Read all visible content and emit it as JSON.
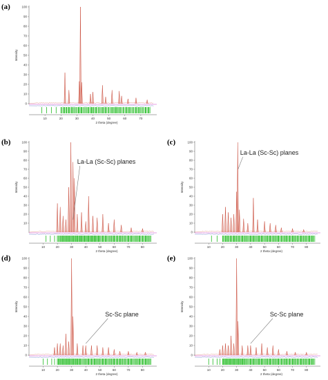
{
  "chart_data": [
    {
      "panel_label": "(a)",
      "type": "line",
      "xlabel": "2 theta (degree)",
      "ylabel": "Intensity",
      "xlim": [
        0,
        80
      ],
      "ylim": [
        0,
        100
      ],
      "xticks": [
        10,
        20,
        30,
        40,
        50,
        60,
        70
      ],
      "yticks": [
        0,
        10,
        20,
        30,
        40,
        50,
        60,
        70,
        80,
        90,
        100
      ],
      "peaks": [
        {
          "x": 22.5,
          "y": 32
        },
        {
          "x": 25.0,
          "y": 14
        },
        {
          "x": 31.5,
          "y": 23
        },
        {
          "x": 32.2,
          "y": 100
        },
        {
          "x": 33.0,
          "y": 22
        },
        {
          "x": 38.5,
          "y": 10
        },
        {
          "x": 40.0,
          "y": 12
        },
        {
          "x": 46.0,
          "y": 19
        },
        {
          "x": 48.0,
          "y": 7
        },
        {
          "x": 52.0,
          "y": 14
        },
        {
          "x": 56.5,
          "y": 13
        },
        {
          "x": 58.0,
          "y": 8
        },
        {
          "x": 62.0,
          "y": 5
        },
        {
          "x": 67.0,
          "y": 6
        },
        {
          "x": 74.0,
          "y": 4
        }
      ],
      "reflection_marks": [
        8,
        11,
        14,
        17,
        20,
        22,
        23.5,
        25,
        27,
        29,
        31,
        32,
        33,
        35,
        37,
        39,
        40,
        42,
        44,
        46,
        48,
        50,
        52,
        54,
        55,
        57,
        59,
        61,
        63,
        65,
        67,
        69,
        71,
        73,
        75
      ],
      "annotation": ""
    },
    {
      "panel_label": "(b)",
      "type": "line",
      "xlabel": "2 theta (degree)",
      "ylabel": "Intensity",
      "xlim": [
        0,
        90
      ],
      "ylim": [
        0,
        100
      ],
      "xticks": [
        10,
        20,
        30,
        40,
        50,
        60,
        70,
        80
      ],
      "yticks": [
        10,
        20,
        30,
        40,
        50,
        60,
        70,
        80,
        90,
        100
      ],
      "peaks": [
        {
          "x": 20.0,
          "y": 32
        },
        {
          "x": 22.0,
          "y": 28
        },
        {
          "x": 24.0,
          "y": 18
        },
        {
          "x": 26.0,
          "y": 14
        },
        {
          "x": 28.0,
          "y": 50
        },
        {
          "x": 29.5,
          "y": 100
        },
        {
          "x": 31.0,
          "y": 78
        },
        {
          "x": 32.0,
          "y": 60
        },
        {
          "x": 34.0,
          "y": 20
        },
        {
          "x": 37.0,
          "y": 22
        },
        {
          "x": 40.0,
          "y": 12
        },
        {
          "x": 42.0,
          "y": 40
        },
        {
          "x": 45.0,
          "y": 18
        },
        {
          "x": 48.0,
          "y": 16
        },
        {
          "x": 52.0,
          "y": 20
        },
        {
          "x": 56.0,
          "y": 10
        },
        {
          "x": 60.0,
          "y": 14
        },
        {
          "x": 65.0,
          "y": 8
        },
        {
          "x": 72.0,
          "y": 5
        },
        {
          "x": 80.0,
          "y": 4
        }
      ],
      "reflection_marks": [
        12,
        15,
        18,
        20,
        22,
        23,
        24,
        25,
        26,
        27,
        28,
        29,
        30,
        31,
        32,
        33,
        34,
        35,
        36,
        37,
        38,
        39,
        40,
        41,
        42,
        43,
        44,
        45,
        46,
        47,
        48,
        49,
        50,
        52,
        54,
        56,
        58,
        60,
        62,
        64,
        66,
        68,
        70,
        72,
        74,
        76,
        78,
        80,
        82,
        84
      ],
      "annotation": "La-La (Sc-Sc) planes",
      "annotation_target": {
        "x": 31.0,
        "y": 14
      }
    },
    {
      "panel_label": "(c)",
      "type": "line",
      "xlabel": "2 theta (degree)",
      "ylabel": "Intensity",
      "xlim": [
        0,
        90
      ],
      "ylim": [
        0,
        100
      ],
      "xticks": [
        10,
        20,
        30,
        40,
        50,
        60,
        70,
        80
      ],
      "yticks": [
        0,
        10,
        20,
        30,
        40,
        50,
        60,
        70,
        80,
        90,
        100
      ],
      "peaks": [
        {
          "x": 20.0,
          "y": 20
        },
        {
          "x": 22.0,
          "y": 28
        },
        {
          "x": 24.0,
          "y": 22
        },
        {
          "x": 26.0,
          "y": 16
        },
        {
          "x": 28.0,
          "y": 20
        },
        {
          "x": 30.0,
          "y": 45
        },
        {
          "x": 30.8,
          "y": 100
        },
        {
          "x": 32.0,
          "y": 25
        },
        {
          "x": 35.0,
          "y": 15
        },
        {
          "x": 38.0,
          "y": 10
        },
        {
          "x": 42.0,
          "y": 38
        },
        {
          "x": 45.0,
          "y": 14
        },
        {
          "x": 50.0,
          "y": 12
        },
        {
          "x": 54.0,
          "y": 10
        },
        {
          "x": 58.0,
          "y": 8
        },
        {
          "x": 62.0,
          "y": 5
        },
        {
          "x": 70.0,
          "y": 4
        },
        {
          "x": 78.0,
          "y": 3
        }
      ],
      "reflection_marks": [
        12,
        16,
        20,
        22,
        24,
        26,
        28,
        30,
        32,
        34,
        36,
        38,
        40,
        42,
        44,
        46,
        48,
        50,
        52,
        54,
        56,
        58,
        60,
        62,
        64,
        66,
        68,
        70,
        72,
        74,
        76,
        78,
        80,
        82,
        84
      ],
      "annotation": "La-La (Sc-Sc) planes",
      "annotation_target": {
        "x": 31.0,
        "y": 70
      }
    },
    {
      "panel_label": "(d)",
      "type": "line",
      "xlabel": "2 theta (degree)",
      "ylabel": "Intensity",
      "xlim": [
        0,
        90
      ],
      "ylim": [
        0,
        100
      ],
      "xticks": [
        10,
        20,
        30,
        40,
        50,
        60,
        70,
        80
      ],
      "yticks": [
        0,
        10,
        20,
        30,
        40,
        50,
        60,
        70,
        80,
        90,
        100
      ],
      "peaks": [
        {
          "x": 18.0,
          "y": 8
        },
        {
          "x": 20.0,
          "y": 12
        },
        {
          "x": 22.0,
          "y": 12
        },
        {
          "x": 24.0,
          "y": 10
        },
        {
          "x": 26.0,
          "y": 22
        },
        {
          "x": 28.0,
          "y": 14
        },
        {
          "x": 30.0,
          "y": 100
        },
        {
          "x": 31.0,
          "y": 40
        },
        {
          "x": 34.0,
          "y": 12
        },
        {
          "x": 38.0,
          "y": 10
        },
        {
          "x": 40.0,
          "y": 10
        },
        {
          "x": 44.0,
          "y": 10
        },
        {
          "x": 48.0,
          "y": 10
        },
        {
          "x": 52.0,
          "y": 8
        },
        {
          "x": 56.0,
          "y": 8
        },
        {
          "x": 60.0,
          "y": 6
        },
        {
          "x": 64.0,
          "y": 4
        },
        {
          "x": 70.0,
          "y": 4
        },
        {
          "x": 76.0,
          "y": 3
        },
        {
          "x": 82.0,
          "y": 3
        }
      ],
      "reflection_marks": [
        10,
        13,
        16,
        18,
        20,
        21,
        22,
        23,
        24,
        25,
        26,
        27,
        28,
        29,
        30,
        31,
        32,
        33,
        34,
        35,
        36,
        38,
        40,
        42,
        44,
        46,
        48,
        50,
        52,
        54,
        56,
        58,
        60,
        62,
        64,
        66,
        68,
        70,
        72,
        74,
        76,
        78,
        80,
        82,
        84
      ],
      "annotation": "Sc-Sc plane",
      "annotation_target": {
        "x": 40.0,
        "y": 12
      }
    },
    {
      "panel_label": "(e)",
      "type": "line",
      "xlabel": "2 theta (degree)",
      "ylabel": "Intensity",
      "xlim": [
        0,
        90
      ],
      "ylim": [
        0,
        100
      ],
      "xticks": [
        10,
        20,
        30,
        40,
        50,
        60,
        70,
        80
      ],
      "yticks": [
        0,
        10,
        20,
        30,
        40,
        50,
        60,
        70,
        80,
        90,
        100
      ],
      "peaks": [
        {
          "x": 18.0,
          "y": 6
        },
        {
          "x": 20.0,
          "y": 10
        },
        {
          "x": 22.0,
          "y": 12
        },
        {
          "x": 24.0,
          "y": 10
        },
        {
          "x": 26.0,
          "y": 20
        },
        {
          "x": 28.0,
          "y": 12
        },
        {
          "x": 30.0,
          "y": 100
        },
        {
          "x": 31.0,
          "y": 35
        },
        {
          "x": 34.0,
          "y": 10
        },
        {
          "x": 38.0,
          "y": 10
        },
        {
          "x": 40.0,
          "y": 10
        },
        {
          "x": 44.0,
          "y": 8
        },
        {
          "x": 48.0,
          "y": 12
        },
        {
          "x": 52.0,
          "y": 8
        },
        {
          "x": 56.0,
          "y": 10
        },
        {
          "x": 60.0,
          "y": 6
        },
        {
          "x": 66.0,
          "y": 4
        },
        {
          "x": 72.0,
          "y": 3
        },
        {
          "x": 80.0,
          "y": 3
        }
      ],
      "reflection_marks": [
        10,
        13,
        16,
        18,
        20,
        21,
        22,
        23,
        24,
        25,
        26,
        27,
        28,
        29,
        30,
        31,
        32,
        33,
        34,
        35,
        36,
        38,
        40,
        42,
        44,
        46,
        48,
        50,
        52,
        54,
        56,
        58,
        60,
        62,
        64,
        66,
        68,
        70,
        72,
        74,
        76,
        78,
        80,
        82,
        84
      ],
      "annotation": "Sc-Sc plane",
      "annotation_target": {
        "x": 40.0,
        "y": 12
      }
    }
  ],
  "colors": {
    "calc_profile": "#c84a3a",
    "obs_profile": "#e08070",
    "difference": "#4060c0",
    "reflection_marks": "#22bb22",
    "zero_line": "#cc44cc",
    "axis": "#555555"
  }
}
